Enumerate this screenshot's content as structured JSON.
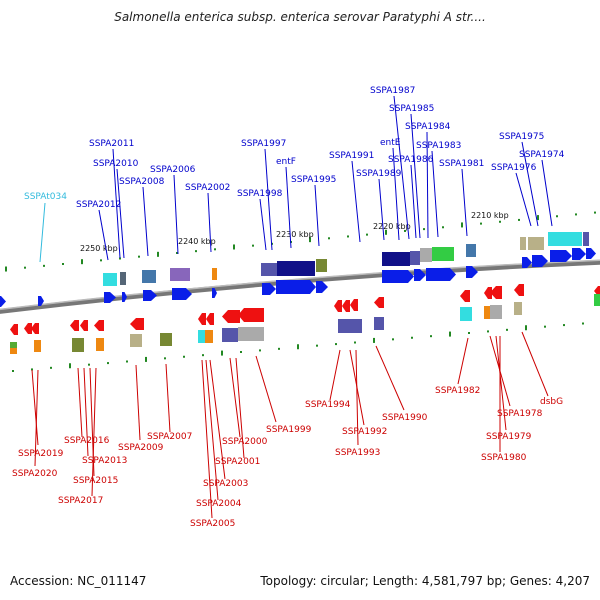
{
  "header": {
    "title": "Salmonella enterica subsp. enterica serovar Paratyphi A str...."
  },
  "footer": {
    "accession": "Accession: NC_011147",
    "summary": "Topology: circular; Length: 4,581,797 bp; Genes: 4,207"
  },
  "ruler": [
    {
      "label": "2250 kbp"
    },
    {
      "label": "2240 kbp"
    },
    {
      "label": "2230 kbp"
    },
    {
      "label": "2220 kbp"
    },
    {
      "label": "2210 kbp"
    }
  ],
  "top_labels": [
    {
      "name": "SSPAt034",
      "color": "#33bbdd"
    },
    {
      "name": "SSPA2012",
      "color": "#0000cc"
    },
    {
      "name": "SSPA2011",
      "color": "#0000cc"
    },
    {
      "name": "SSPA2010",
      "color": "#0000cc"
    },
    {
      "name": "SSPA2008",
      "color": "#0000cc"
    },
    {
      "name": "SSPA2006",
      "color": "#0000cc"
    },
    {
      "name": "SSPA2002",
      "color": "#0000cc"
    },
    {
      "name": "SSPA1998",
      "color": "#0000cc"
    },
    {
      "name": "SSPA1997",
      "color": "#0000cc"
    },
    {
      "name": "entF",
      "color": "#0000cc"
    },
    {
      "name": "SSPA1995",
      "color": "#0000cc"
    },
    {
      "name": "SSPA1991",
      "color": "#0000cc"
    },
    {
      "name": "SSPA1989",
      "color": "#0000cc"
    },
    {
      "name": "entE",
      "color": "#0000cc"
    },
    {
      "name": "SSPA1987",
      "color": "#0000cc"
    },
    {
      "name": "SSPA1986",
      "color": "#0000cc"
    },
    {
      "name": "SSPA1985",
      "color": "#0000cc"
    },
    {
      "name": "SSPA1984",
      "color": "#0000cc"
    },
    {
      "name": "SSPA1983",
      "color": "#0000cc"
    },
    {
      "name": "SSPA1981",
      "color": "#0000cc"
    },
    {
      "name": "SSPA1976",
      "color": "#0000cc"
    },
    {
      "name": "SSPA1975",
      "color": "#0000cc"
    },
    {
      "name": "SSPA1974",
      "color": "#0000cc"
    }
  ],
  "bottom_labels": [
    {
      "name": "SSPA2019",
      "color": "#cc0000"
    },
    {
      "name": "SSPA2020",
      "color": "#cc0000"
    },
    {
      "name": "SSPA2016",
      "color": "#cc0000"
    },
    {
      "name": "SSPA2013",
      "color": "#cc0000"
    },
    {
      "name": "SSPA2015",
      "color": "#cc0000"
    },
    {
      "name": "SSPA2017",
      "color": "#cc0000"
    },
    {
      "name": "SSPA2009",
      "color": "#cc0000"
    },
    {
      "name": "SSPA2007",
      "color": "#cc0000"
    },
    {
      "name": "SSPA2000",
      "color": "#cc0000"
    },
    {
      "name": "SSPA2001",
      "color": "#cc0000"
    },
    {
      "name": "SSPA2003",
      "color": "#cc0000"
    },
    {
      "name": "SSPA2004",
      "color": "#cc0000"
    },
    {
      "name": "SSPA2005",
      "color": "#cc0000"
    },
    {
      "name": "SSPA1999",
      "color": "#cc0000"
    },
    {
      "name": "SSPA1994",
      "color": "#cc0000"
    },
    {
      "name": "SSPA1992",
      "color": "#cc0000"
    },
    {
      "name": "SSPA1993",
      "color": "#cc0000"
    },
    {
      "name": "SSPA1990",
      "color": "#cc0000"
    },
    {
      "name": "SSPA1982",
      "color": "#cc0000"
    },
    {
      "name": "SSPA1978",
      "color": "#cc0000"
    },
    {
      "name": "SSPA1979",
      "color": "#cc0000"
    },
    {
      "name": "SSPA1980",
      "color": "#cc0000"
    },
    {
      "name": "dsbG",
      "color": "#cc0000"
    }
  ],
  "colors": {
    "forward_gene": "#0a1ee8",
    "reverse_gene": "#ee1111",
    "backbone": "#888888",
    "gc_tick": "#228822"
  }
}
